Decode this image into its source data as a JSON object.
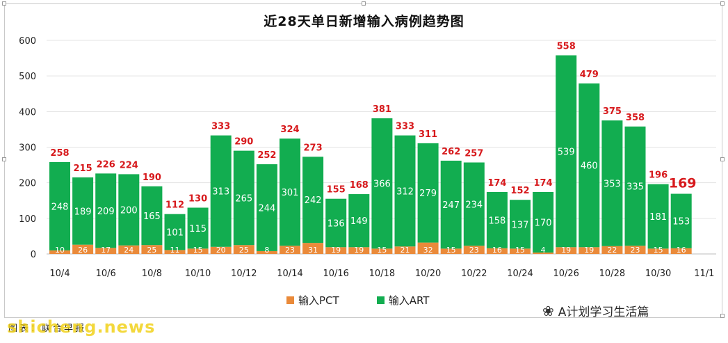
{
  "colors": {
    "pct": "#ea8a3a",
    "art": "#12ad50",
    "total_label": "#d7191c",
    "inner_label": "#ffffff",
    "grid": "#e3e3e3"
  },
  "watermark": {
    "icon": "wechat-bubble-icon",
    "text": "A计划学习生活篇"
  },
  "source_text": "图表：联合早报",
  "site_text": "shicheng.news",
  "chart_data": {
    "type": "bar",
    "stacked": true,
    "title": "近28天单日新增输入病例趋势图",
    "xlabel": "",
    "ylabel": "",
    "ylim": [
      0,
      600
    ],
    "yticks": [
      0,
      100,
      200,
      300,
      400,
      500,
      600
    ],
    "grid": true,
    "legend_position": "bottom",
    "categories": [
      "10/4",
      "10/5",
      "10/6",
      "10/7",
      "10/8",
      "10/9",
      "10/10",
      "10/11",
      "10/12",
      "10/13",
      "10/14",
      "10/15",
      "10/16",
      "10/17",
      "10/18",
      "10/19",
      "10/20",
      "10/21",
      "10/22",
      "10/23",
      "10/24",
      "10/25",
      "10/26",
      "10/27",
      "10/28",
      "10/29",
      "10/30",
      "10/31"
    ],
    "x_tick_labels": [
      "10/4",
      "10/6",
      "10/8",
      "10/10",
      "10/12",
      "10/14",
      "10/16",
      "10/18",
      "10/20",
      "10/22",
      "10/24",
      "10/26",
      "10/28",
      "10/30",
      "11/1"
    ],
    "series": [
      {
        "name": "输入PCT",
        "values": [
          10,
          26,
          17,
          24,
          25,
          11,
          15,
          20,
          25,
          8,
          23,
          31,
          19,
          19,
          15,
          21,
          32,
          15,
          23,
          16,
          15,
          4,
          19,
          19,
          22,
          23,
          15,
          16
        ]
      },
      {
        "name": "输入ART",
        "values": [
          248,
          189,
          209,
          200,
          165,
          101,
          115,
          313,
          265,
          244,
          301,
          242,
          136,
          149,
          366,
          312,
          279,
          247,
          234,
          158,
          137,
          170,
          539,
          460,
          353,
          335,
          181,
          153
        ]
      }
    ],
    "totals": [
      258,
      215,
      226,
      224,
      190,
      112,
      130,
      333,
      290,
      252,
      324,
      273,
      155,
      168,
      381,
      333,
      311,
      262,
      257,
      174,
      152,
      174,
      558,
      479,
      375,
      358,
      196,
      169
    ],
    "highlight_index": 27
  }
}
